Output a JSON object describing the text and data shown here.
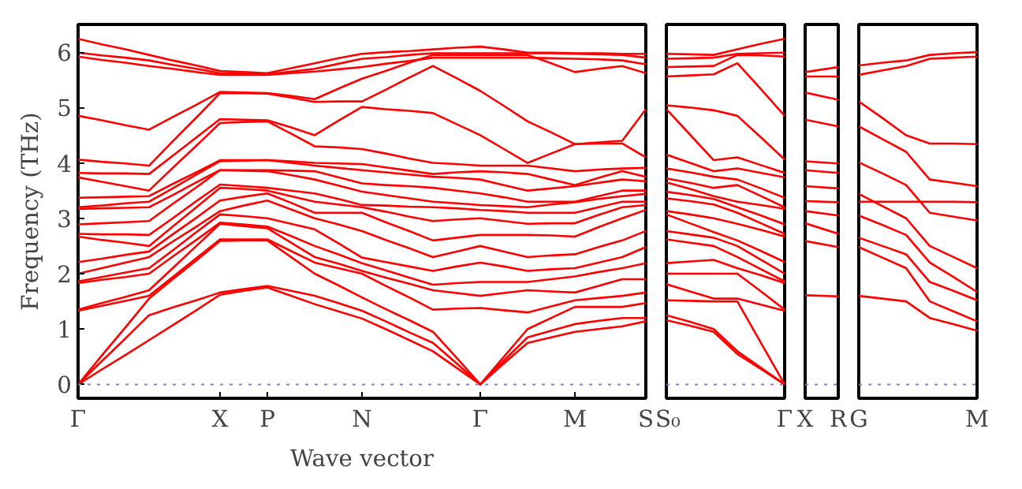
{
  "chart_data": [
    {
      "type": "line",
      "ylabel": "Frequency (THz)",
      "xlabel": "Wave vector",
      "ylim": [
        -0.25,
        6.5
      ],
      "categories": [
        "Γ",
        null,
        null,
        null,
        null,
        null,
        "X",
        null,
        "P",
        null,
        null,
        null,
        "N",
        null,
        null,
        null,
        null,
        "Γ",
        null,
        null,
        null,
        "M",
        null,
        null,
        "S"
      ],
      "yticks": [
        0,
        1,
        2,
        3,
        4,
        5,
        6
      ],
      "ref_lines": [
        {
          "axis": "y",
          "value": 0,
          "color": "#8080e0",
          "line_style": "dotted"
        }
      ],
      "series": [
        {
          "color": "#ff0000",
          "values": [
            0,
            0.27,
            0.53,
            0.8,
            1.07,
            1.34,
            1.62,
            1.69,
            1.75,
            1.6,
            1.45,
            1.32,
            1.19,
            1.0,
            0.8,
            0.6,
            0.3,
            0,
            0.38,
            0.75,
            0.85,
            0.95,
            1.0,
            1.05,
            1.14
          ]
        },
        {
          "color": "#ff0000",
          "values": [
            0,
            0.42,
            0.83,
            1.25,
            1.39,
            1.52,
            1.66,
            1.72,
            1.78,
            1.69,
            1.6,
            1.47,
            1.33,
            1.14,
            0.94,
            0.75,
            0.38,
            0,
            0.43,
            0.85,
            0.97,
            1.09,
            1.15,
            1.2,
            1.2
          ]
        },
        {
          "color": "#ff0000",
          "values": [
            0,
            0.52,
            1.03,
            1.55,
            1.9,
            2.24,
            2.59,
            2.6,
            2.6,
            2.3,
            2.0,
            1.79,
            1.57,
            1.36,
            1.16,
            0.95,
            0.48,
            0,
            0.5,
            1.0,
            1.2,
            1.4,
            1.4,
            1.4,
            1.47
          ]
        },
        {
          "color": "#ff0000",
          "values": [
            1.33,
            1.42,
            1.51,
            1.6,
            1.94,
            2.28,
            2.62,
            2.62,
            2.62,
            2.41,
            2.2,
            2.1,
            2.0,
            1.78,
            1.57,
            1.35,
            1.37,
            1.38,
            1.34,
            1.3,
            1.41,
            1.52,
            1.56,
            1.6,
            1.66
          ]
        },
        {
          "color": "#ff0000",
          "values": [
            1.35,
            1.47,
            1.58,
            1.7,
            2.1,
            2.5,
            2.9,
            2.86,
            2.82,
            2.56,
            2.3,
            2.18,
            2.05,
            1.93,
            1.82,
            1.7,
            1.65,
            1.6,
            1.65,
            1.7,
            1.68,
            1.66,
            1.78,
            1.9,
            1.9
          ]
        },
        {
          "color": "#ff0000",
          "values": [
            1.83,
            1.89,
            1.94,
            2.0,
            2.31,
            2.61,
            2.92,
            2.89,
            2.85,
            2.68,
            2.5,
            2.35,
            2.19,
            2.06,
            1.93,
            1.8,
            1.83,
            1.85,
            1.85,
            1.85,
            1.9,
            1.95,
            2.03,
            2.1,
            2.19
          ]
        },
        {
          "color": "#ff0000",
          "values": [
            1.86,
            1.94,
            2.02,
            2.1,
            2.42,
            2.75,
            3.07,
            3.04,
            3.0,
            2.9,
            2.8,
            2.55,
            2.29,
            2.21,
            2.13,
            2.05,
            2.13,
            2.2,
            2.13,
            2.05,
            2.08,
            2.1,
            2.2,
            2.3,
            2.48
          ]
        },
        {
          "color": "#ff0000",
          "values": [
            2.0,
            2.1,
            2.2,
            2.3,
            2.58,
            2.85,
            3.13,
            3.23,
            3.32,
            3.16,
            3.0,
            2.89,
            2.77,
            2.61,
            2.46,
            2.3,
            2.4,
            2.5,
            2.4,
            2.3,
            2.33,
            2.35,
            2.48,
            2.6,
            2.77
          ]
        },
        {
          "color": "#ff0000",
          "values": [
            2.21,
            2.27,
            2.34,
            2.4,
            2.71,
            3.01,
            3.32,
            3.39,
            3.45,
            3.28,
            3.1,
            3.1,
            3.1,
            2.93,
            2.77,
            2.6,
            2.65,
            2.7,
            2.7,
            2.7,
            2.69,
            2.67,
            2.84,
            3.0,
            3.15
          ]
        },
        {
          "color": "#ff0000",
          "values": [
            2.67,
            2.61,
            2.56,
            2.5,
            2.85,
            3.2,
            3.55,
            3.53,
            3.5,
            3.4,
            3.3,
            3.25,
            3.2,
            3.12,
            3.03,
            2.95,
            2.98,
            3.0,
            2.95,
            2.9,
            2.91,
            2.91,
            3.06,
            3.2,
            3.24
          ]
        },
        {
          "color": "#ff0000",
          "values": [
            2.72,
            2.71,
            2.71,
            2.7,
            3.0,
            3.31,
            3.61,
            3.58,
            3.55,
            3.5,
            3.45,
            3.35,
            3.24,
            3.23,
            3.21,
            3.2,
            3.18,
            3.15,
            3.13,
            3.1,
            3.1,
            3.1,
            3.2,
            3.3,
            3.3
          ]
        },
        {
          "color": "#ff0000",
          "values": [
            2.89,
            2.91,
            2.93,
            2.95,
            3.26,
            3.56,
            3.87,
            3.86,
            3.85,
            3.78,
            3.7,
            3.59,
            3.48,
            3.42,
            3.36,
            3.3,
            3.27,
            3.24,
            3.22,
            3.2,
            3.25,
            3.29,
            3.35,
            3.4,
            3.44
          ]
        },
        {
          "color": "#ff0000",
          "values": [
            3.17,
            3.18,
            3.19,
            3.2,
            3.42,
            3.65,
            3.87,
            3.87,
            3.87,
            3.86,
            3.85,
            3.74,
            3.63,
            3.6,
            3.58,
            3.55,
            3.5,
            3.45,
            3.38,
            3.3,
            3.3,
            3.3,
            3.4,
            3.5,
            3.5
          ]
        },
        {
          "color": "#ff0000",
          "values": [
            3.2,
            3.23,
            3.27,
            3.3,
            3.54,
            3.79,
            4.03,
            4.04,
            4.05,
            4.0,
            3.95,
            3.91,
            3.87,
            3.83,
            3.79,
            3.75,
            3.73,
            3.7,
            3.6,
            3.5,
            3.54,
            3.58,
            3.64,
            3.7,
            3.67
          ]
        },
        {
          "color": "#ff0000",
          "values": [
            3.37,
            3.38,
            3.39,
            3.4,
            3.62,
            3.83,
            4.05,
            4.05,
            4.05,
            4.03,
            4.0,
            3.99,
            3.98,
            3.92,
            3.86,
            3.8,
            3.83,
            3.85,
            3.83,
            3.8,
            3.7,
            3.6,
            3.73,
            3.85,
            3.75
          ]
        },
        {
          "color": "#ff0000",
          "values": [
            3.74,
            3.66,
            3.58,
            3.5,
            3.91,
            4.31,
            4.72,
            4.74,
            4.75,
            4.53,
            4.3,
            4.28,
            4.25,
            4.17,
            4.08,
            4.0,
            3.98,
            3.95,
            3.95,
            3.95,
            3.9,
            3.85,
            3.88,
            3.9,
            3.91
          ]
        },
        {
          "color": "#ff0000",
          "values": [
            3.82,
            3.81,
            3.81,
            3.8,
            4.13,
            4.46,
            4.79,
            4.78,
            4.77,
            4.64,
            4.5,
            4.76,
            5.01,
            4.97,
            4.94,
            4.9,
            4.7,
            4.5,
            4.25,
            4.0,
            4.17,
            4.34,
            4.35,
            4.35,
            4.1
          ]
        },
        {
          "color": "#ff0000",
          "values": [
            4.06,
            4.02,
            3.99,
            3.95,
            4.39,
            4.82,
            5.26,
            5.26,
            5.25,
            5.18,
            5.1,
            5.11,
            5.11,
            5.32,
            5.54,
            5.75,
            5.53,
            5.3,
            5.03,
            4.75,
            4.55,
            4.34,
            4.37,
            4.4,
            4.97
          ]
        },
        {
          "color": "#ff0000",
          "values": [
            4.85,
            4.77,
            4.68,
            4.6,
            4.83,
            5.05,
            5.28,
            5.27,
            5.26,
            5.21,
            5.15,
            5.34,
            5.52,
            5.66,
            5.81,
            5.95,
            5.95,
            5.95,
            5.95,
            5.95,
            5.8,
            5.64,
            5.7,
            5.75,
            5.62
          ]
        },
        {
          "color": "#ff0000",
          "values": [
            5.92,
            5.86,
            5.81,
            5.75,
            5.7,
            5.64,
            5.59,
            5.59,
            5.59,
            5.62,
            5.65,
            5.69,
            5.73,
            5.79,
            5.84,
            5.9,
            5.9,
            5.9,
            5.9,
            5.9,
            5.89,
            5.88,
            5.87,
            5.85,
            5.78
          ]
        },
        {
          "color": "#ff0000",
          "values": [
            5.99,
            5.94,
            5.9,
            5.85,
            5.77,
            5.7,
            5.62,
            5.61,
            5.6,
            5.65,
            5.7,
            5.79,
            5.88,
            5.91,
            5.95,
            5.98,
            5.98,
            5.98,
            5.98,
            5.98,
            5.98,
            5.97,
            5.96,
            5.95,
            5.9
          ]
        },
        {
          "color": "#ff0000",
          "values": [
            6.24,
            6.14,
            6.05,
            5.95,
            5.85,
            5.76,
            5.66,
            5.64,
            5.62,
            5.71,
            5.8,
            5.89,
            5.97,
            6.0,
            6.02,
            6.05,
            6.08,
            6.1,
            6.05,
            5.99,
            5.99,
            5.98,
            5.98,
            5.97,
            5.97
          ]
        }
      ]
    },
    {
      "type": "line",
      "tick_labels": "x",
      "ylim": [
        -0.25,
        6.5
      ],
      "categories": [
        "S₀",
        null,
        null,
        null,
        null,
        "Γ"
      ],
      "yticks": [
        0,
        1,
        2,
        3,
        4,
        5,
        6
      ],
      "ref_lines": [
        {
          "axis": "y",
          "value": 0,
          "color": "#8080e0",
          "line_style": "dotted"
        }
      ],
      "series": [
        {
          "color": "#ff0000",
          "values": [
            1.16,
            1.06,
            0.95,
            0.55,
            0.28,
            0
          ]
        },
        {
          "color": "#ff0000",
          "values": [
            1.25,
            1.13,
            1.0,
            0.6,
            0.3,
            0
          ]
        },
        {
          "color": "#ff0000",
          "values": [
            1.52,
            1.51,
            1.5,
            1.5,
            0.75,
            0
          ]
        },
        {
          "color": "#ff0000",
          "values": [
            1.81,
            1.68,
            1.55,
            1.55,
            1.44,
            1.33
          ]
        },
        {
          "color": "#ff0000",
          "values": [
            2.0,
            2.0,
            2.0,
            2.0,
            1.68,
            1.35
          ]
        },
        {
          "color": "#ff0000",
          "values": [
            2.19,
            2.22,
            2.25,
            2.1,
            1.97,
            1.83
          ]
        },
        {
          "color": "#ff0000",
          "values": [
            2.62,
            2.56,
            2.5,
            2.3,
            2.08,
            1.86
          ]
        },
        {
          "color": "#ff0000",
          "values": [
            2.77,
            2.71,
            2.65,
            2.5,
            2.25,
            2.0
          ]
        },
        {
          "color": "#ff0000",
          "values": [
            3.07,
            2.91,
            2.75,
            2.6,
            2.41,
            2.21
          ]
        },
        {
          "color": "#ff0000",
          "values": [
            3.13,
            3.07,
            3.0,
            2.9,
            2.79,
            2.67
          ]
        },
        {
          "color": "#ff0000",
          "values": [
            3.36,
            3.31,
            3.25,
            3.1,
            2.91,
            2.72
          ]
        },
        {
          "color": "#ff0000",
          "values": [
            3.48,
            3.42,
            3.35,
            3.2,
            3.05,
            2.89
          ]
        },
        {
          "color": "#ff0000",
          "values": [
            3.65,
            3.53,
            3.4,
            3.3,
            3.24,
            3.17
          ]
        },
        {
          "color": "#ff0000",
          "values": [
            3.72,
            3.64,
            3.55,
            3.6,
            3.4,
            3.2
          ]
        },
        {
          "color": "#ff0000",
          "values": [
            3.9,
            3.83,
            3.75,
            3.7,
            3.54,
            3.37
          ]
        },
        {
          "color": "#ff0000",
          "values": [
            4.15,
            4.0,
            3.85,
            3.9,
            3.82,
            3.74
          ]
        },
        {
          "color": "#ff0000",
          "values": [
            4.97,
            4.51,
            4.05,
            4.1,
            3.96,
            3.82
          ]
        },
        {
          "color": "#ff0000",
          "values": [
            5.04,
            5.0,
            4.95,
            4.85,
            4.46,
            4.06
          ]
        },
        {
          "color": "#ff0000",
          "values": [
            5.56,
            5.58,
            5.6,
            5.8,
            5.33,
            4.85
          ]
        },
        {
          "color": "#ff0000",
          "values": [
            5.73,
            5.74,
            5.75,
            5.95,
            5.94,
            5.92
          ]
        },
        {
          "color": "#ff0000",
          "values": [
            5.88,
            5.89,
            5.9,
            5.97,
            5.98,
            5.99
          ]
        },
        {
          "color": "#ff0000",
          "values": [
            5.97,
            5.96,
            5.95,
            6.05,
            6.15,
            6.24
          ]
        }
      ]
    },
    {
      "type": "line",
      "tick_labels": "x",
      "ylim": [
        -0.25,
        6.5
      ],
      "categories": [
        "X",
        "R"
      ],
      "yticks": [
        0,
        1,
        2,
        3,
        4,
        5,
        6
      ],
      "ref_lines": [
        {
          "axis": "y",
          "value": 0,
          "color": "#8080e0",
          "line_style": "dotted"
        }
      ],
      "series": [
        {
          "color": "#ff0000",
          "values": [
            1.61,
            1.59
          ]
        },
        {
          "color": "#ff0000",
          "values": [
            2.59,
            2.48
          ]
        },
        {
          "color": "#ff0000",
          "values": [
            2.91,
            2.72
          ]
        },
        {
          "color": "#ff0000",
          "values": [
            3.13,
            3.05
          ]
        },
        {
          "color": "#ff0000",
          "values": [
            3.31,
            3.29
          ]
        },
        {
          "color": "#ff0000",
          "values": [
            3.58,
            3.54
          ]
        },
        {
          "color": "#ff0000",
          "values": [
            3.87,
            3.82
          ]
        },
        {
          "color": "#ff0000",
          "values": [
            4.03,
            3.99
          ]
        },
        {
          "color": "#ff0000",
          "values": [
            4.78,
            4.66
          ]
        },
        {
          "color": "#ff0000",
          "values": [
            5.27,
            5.14
          ]
        },
        {
          "color": "#ff0000",
          "values": [
            5.56,
            5.56
          ]
        },
        {
          "color": "#ff0000",
          "values": [
            5.64,
            5.73
          ]
        }
      ]
    },
    {
      "type": "line",
      "tick_labels": "x",
      "ylim": [
        -0.25,
        6.5
      ],
      "categories": [
        "G",
        null,
        null,
        null,
        null,
        "M"
      ],
      "yticks": [
        0,
        1,
        2,
        3,
        4,
        5,
        6
      ],
      "ref_lines": [
        {
          "axis": "y",
          "value": 0,
          "color": "#8080e0",
          "line_style": "dotted"
        }
      ],
      "series": [
        {
          "color": "#ff0000",
          "values": [
            1.6,
            1.55,
            1.5,
            1.2,
            1.09,
            0.97
          ]
        },
        {
          "color": "#ff0000",
          "values": [
            2.48,
            2.29,
            2.1,
            1.5,
            1.32,
            1.14
          ]
        },
        {
          "color": "#ff0000",
          "values": [
            2.65,
            2.5,
            2.35,
            1.85,
            1.69,
            1.52
          ]
        },
        {
          "color": "#ff0000",
          "values": [
            3.05,
            2.88,
            2.7,
            2.2,
            1.94,
            1.67
          ]
        },
        {
          "color": "#ff0000",
          "values": [
            3.44,
            3.22,
            3.0,
            2.5,
            2.3,
            2.1
          ]
        },
        {
          "color": "#ff0000",
          "values": [
            4.01,
            3.81,
            3.6,
            3.1,
            3.03,
            2.96
          ]
        },
        {
          "color": "#ff0000",
          "values": [
            3.3,
            3.3,
            3.3,
            3.3,
            3.3,
            3.29
          ]
        },
        {
          "color": "#ff0000",
          "values": [
            4.66,
            4.43,
            4.2,
            3.7,
            3.64,
            3.58
          ]
        },
        {
          "color": "#ff0000",
          "values": [
            5.11,
            4.81,
            4.5,
            4.35,
            4.35,
            4.34
          ]
        },
        {
          "color": "#ff0000",
          "values": [
            5.59,
            5.67,
            5.75,
            5.88,
            5.9,
            5.92
          ]
        },
        {
          "color": "#ff0000",
          "values": [
            5.76,
            5.81,
            5.85,
            5.95,
            5.98,
            6.0
          ]
        }
      ]
    }
  ]
}
